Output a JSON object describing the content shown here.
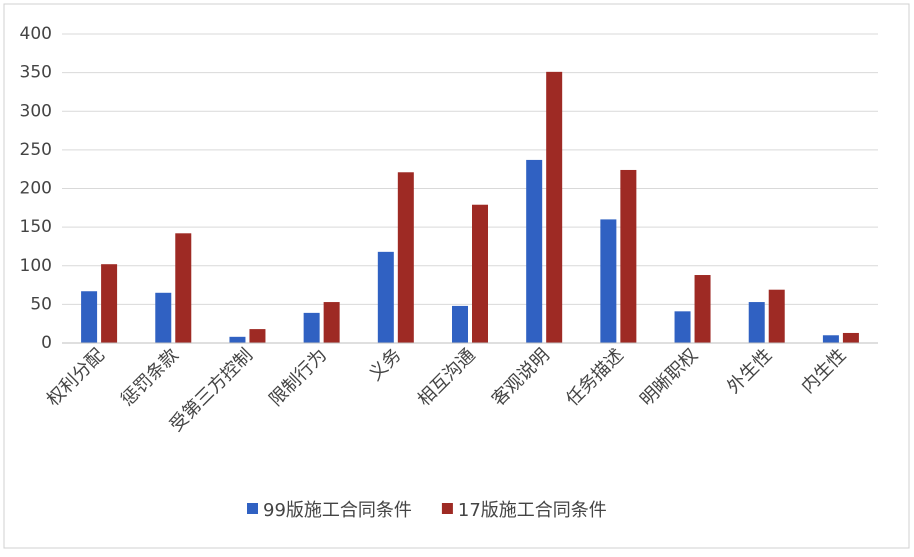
{
  "chart_data": {
    "type": "bar",
    "categories": [
      "权利分配",
      "惩罚条款",
      "受第三方控制",
      "限制行为",
      "义务",
      "相互沟通",
      "客观说明",
      "任务描述",
      "明晰职权",
      "外生性",
      "内生性"
    ],
    "series": [
      {
        "name": "99版施工合同条件",
        "color": "#3061c2",
        "values": [
          67,
          65,
          8,
          39,
          118,
          48,
          237,
          160,
          41,
          53,
          10
        ]
      },
      {
        "name": "17版施工合同条件",
        "color": "#9e2a24",
        "values": [
          102,
          142,
          18,
          53,
          221,
          179,
          351,
          224,
          88,
          69,
          13
        ]
      }
    ],
    "ylim": [
      0,
      400
    ],
    "yticks": [
      0,
      50,
      100,
      150,
      200,
      250,
      300,
      350,
      400
    ],
    "grid": true,
    "legend": "bottom"
  }
}
